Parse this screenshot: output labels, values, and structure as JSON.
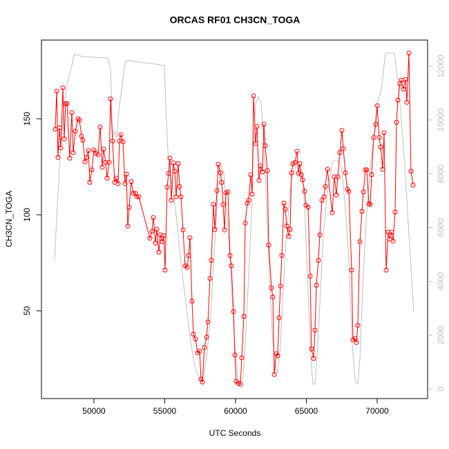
{
  "chart_data": {
    "type": "scatter",
    "title": "ORCAS RF01 CH3CN_TOGA",
    "x_label": "UTC Seconds",
    "y_label": "CH3CN_TOGA",
    "xlim": [
      46293,
      73561
    ],
    "ylim": [
      4.3,
      191
    ],
    "y2lim": [
      -360,
      12976
    ],
    "xticks": [
      50000,
      55000,
      60000,
      65000,
      70000
    ],
    "yticks": [
      50,
      100,
      150
    ],
    "y2ticks": [
      0,
      2000,
      4000,
      6000,
      8000,
      10000,
      12000
    ],
    "y2_color": "#bebebe",
    "series": [
      {
        "color": "#ff0000",
        "markers": true,
        "x": [
          47268,
          47366,
          47463,
          47561,
          47659,
          47805,
          47902,
          48000,
          48098,
          48293,
          48439,
          48537,
          48683,
          48878,
          48976,
          49122,
          49220,
          49366,
          49463,
          49610,
          49707,
          49854,
          50000,
          50146,
          50293,
          50439,
          50585,
          50683,
          50829,
          50927,
          51073,
          51171,
          51317,
          51463,
          51561,
          51707,
          51805,
          51902,
          52049,
          52195,
          52293,
          52390,
          52488,
          52634,
          52780,
          52927,
          53024,
          53171,
          53951,
          54098,
          54195,
          54341,
          54439,
          54585,
          54683,
          54829,
          54927,
          55024,
          55171,
          55268,
          55366,
          55463,
          55610,
          55707,
          55805,
          55951,
          56049,
          56146,
          56293,
          56439,
          56585,
          56683,
          56780,
          56927,
          57024,
          57171,
          57317,
          57463,
          57561,
          57659,
          57805,
          57951,
          58049,
          58195,
          58293,
          58439,
          58537,
          58683,
          58780,
          58927,
          59024,
          59122,
          59220,
          59317,
          59463,
          59610,
          59707,
          59854,
          59951,
          60049,
          60195,
          60341,
          60439,
          60585,
          60683,
          60829,
          60927,
          61073,
          61171,
          61268,
          61415,
          61512,
          61659,
          61756,
          61902,
          62000,
          62098,
          62244,
          62341,
          62537,
          62634,
          62732,
          62878,
          62976,
          63073,
          63171,
          63268,
          63415,
          63512,
          63610,
          63756,
          63854,
          63951,
          64049,
          64195,
          64341,
          64439,
          64537,
          64634,
          64732,
          64878,
          64976,
          65122,
          65268,
          65366,
          65512,
          65610,
          65707,
          65854,
          65951,
          66098,
          66244,
          66341,
          66488,
          66829,
          66976,
          67122,
          67220,
          67366,
          67512,
          67610,
          67756,
          67902,
          68000,
          68195,
          68293,
          68439,
          68537,
          68634,
          68780,
          68927,
          69024,
          69171,
          69268,
          69415,
          69512,
          69610,
          69756,
          69902,
          70000,
          70146,
          70244,
          70390,
          70488,
          70634,
          70780,
          70878,
          71024,
          71122,
          71268,
          71366,
          71463,
          71610,
          71707,
          71854,
          72000,
          72098,
          72244,
          72390,
          72537
        ],
        "values": [
          144.6,
          164.4,
          129.9,
          145.3,
          134.9,
          166.2,
          139.6,
          157.9,
          157.9,
          129.5,
          153.2,
          132.4,
          143.5,
          150,
          149.3,
          141,
          138.8,
          127.7,
          129.9,
          133.5,
          116.9,
          123.4,
          133.8,
          132,
          131.3,
          145.7,
          124.8,
          134.2,
          127.3,
          119.1,
          127.3,
          160.4,
          138.5,
          116.9,
          119.1,
          116.2,
          138.5,
          141.7,
          138.1,
          116.2,
          121.2,
          94.2,
          103.9,
          117.3,
          111.2,
          111.2,
          109.4,
          109.4,
          87.8,
          91.4,
          98.6,
          85.3,
          92.4,
          80.6,
          89.6,
          86,
          89.2,
          71.2,
          114.4,
          121.6,
          129.5,
          107.6,
          127,
          122.7,
          109.4,
          126.6,
          114.7,
          109.4,
          92.1,
          73.4,
          72.7,
          78.8,
          88.1,
          55,
          37.8,
          35.3,
          28.1,
          29.1,
          14.4,
          12.9,
          30.9,
          36.3,
          44.2,
          66.9,
          76.3,
          105.4,
          92.4,
          112.6,
          126.3,
          121.9,
          116.9,
          105.4,
          92.1,
          111.5,
          111.9,
          78.8,
          73.4,
          49.6,
          27,
          13.3,
          12.2,
          11.8,
          25.5,
          47.1,
          95.7,
          106.1,
          107.6,
          120.9,
          110.8,
          161.9,
          137.1,
          146,
          118,
          125.5,
          122.3,
          147.1,
          136,
          123,
          84.2,
          61.9,
          57.2,
          16.9,
          27.7,
          26.6,
          46.4,
          62.9,
          78.8,
          106.1,
          102.9,
          94.2,
          88.8,
          92.4,
          121.9,
          126.6,
          127.3,
          133.1,
          121.6,
          126.6,
          120.9,
          118.3,
          112.2,
          105,
          104,
          68,
          30.2,
          25.2,
          39.9,
          63.3,
          76.3,
          89.6,
          107.6,
          109.4,
          114.7,
          123.7,
          101.1,
          119.8,
          110.4,
          119.8,
          132.4,
          143.9,
          134.5,
          121.9,
          113.3,
          112.2,
          71.2,
          34.9,
          35.6,
          33.5,
          42.4,
          86,
          101.8,
          111.9,
          123.4,
          123.4,
          105.8,
          105.4,
          120.9,
          140.3,
          147.1,
          156.8,
          140.3,
          135.3,
          123.7,
          142.8,
          71.2,
          91,
          87.4,
          91,
          86.3,
          101.4,
          148.2,
          159.7,
          168.3,
          170.1,
          165.5,
          170.5,
          158.6,
          184.2,
          122.7,
          115.5
        ]
      },
      {
        "color": "#bebebe",
        "axis": "y2",
        "markers": false,
        "x": [
          47220,
          47463,
          47659,
          47854,
          48049,
          48390,
          48585,
          48780,
          49220,
          50976,
          51171,
          51317,
          51463,
          51610,
          51756,
          51951,
          52195,
          52390,
          53122,
          54098,
          54976,
          55073,
          55171,
          55317,
          55561,
          55854,
          56146,
          56439,
          56732,
          57024,
          57268,
          57512,
          57756,
          58000,
          58293,
          58537,
          58780,
          58976,
          59171,
          59366,
          59561,
          59756,
          59951,
          60146,
          60341,
          60537,
          60732,
          60927,
          61122,
          61268,
          61415,
          61610,
          61805,
          62000,
          62195,
          62390,
          62585,
          62780,
          62976,
          63171,
          63366,
          63561,
          63756,
          63951,
          64341,
          64732,
          64927,
          65122,
          65317,
          65463,
          65610,
          65805,
          66000,
          66195,
          66488,
          66780,
          66927,
          67268,
          67463,
          67756,
          68000,
          68244,
          68439,
          68634,
          68780,
          68976,
          69220,
          69512,
          69756,
          70000,
          70293,
          70585,
          71220,
          71415,
          71659,
          71951,
          72244,
          72585
        ],
        "values": [
          4805,
          7271,
          9070,
          10355,
          11254,
          11896,
          12436,
          12436,
          12360,
          12307,
          11896,
          9327,
          9583,
          9327,
          10355,
          11126,
          12127,
          12230,
          12153,
          12102,
          12025,
          10612,
          9327,
          8042,
          7528,
          6244,
          4702,
          3417,
          2133,
          1105,
          591,
          334,
          462,
          1362,
          3160,
          5473,
          7528,
          8299,
          8042,
          6757,
          5216,
          3417,
          1619,
          462,
          206,
          462,
          2133,
          4188,
          6501,
          9070,
          10612,
          10868,
          10612,
          9327,
          6757,
          4188,
          2133,
          848,
          591,
          1619,
          3674,
          5473,
          6757,
          7785,
          8427,
          8042,
          6244,
          3674,
          1105,
          180,
          180,
          1619,
          3674,
          5730,
          7271,
          8299,
          8505,
          8505,
          8299,
          6757,
          4702,
          1619,
          334,
          180,
          1105,
          3674,
          6244,
          8299,
          9327,
          10612,
          11126,
          12487,
          12487,
          11639,
          10355,
          8299,
          5730,
          2852
        ]
      }
    ]
  }
}
